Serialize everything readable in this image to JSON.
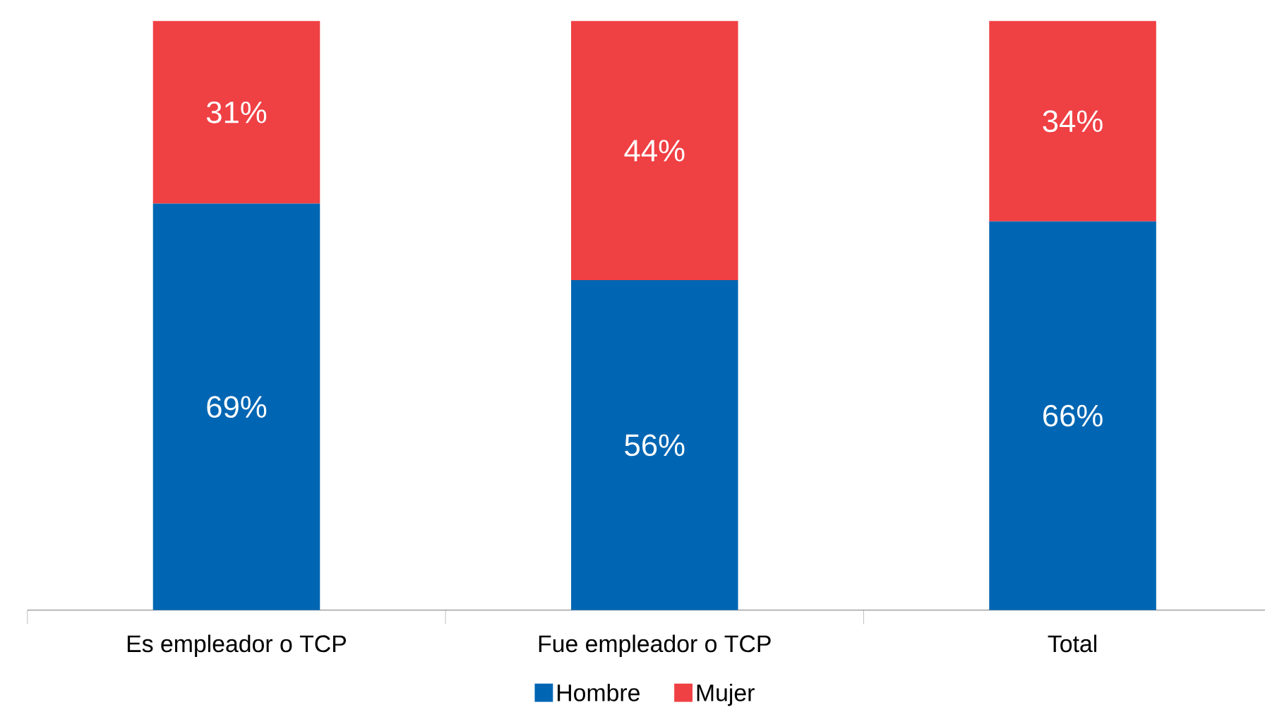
{
  "chart_data": {
    "type": "bar",
    "stacked": true,
    "categories": [
      "Es empleador o TCP",
      "Fue empleador o TCP",
      "Total"
    ],
    "series": [
      {
        "name": "Hombre",
        "color": "#0066b3",
        "values": [
          69,
          56,
          66
        ],
        "value_labels": [
          "69%",
          "56%",
          "66%"
        ]
      },
      {
        "name": "Mujer",
        "color": "#ef4044",
        "values": [
          31,
          44,
          34
        ],
        "value_labels": [
          "31%",
          "44%",
          "34%"
        ]
      }
    ],
    "legend": "bottom"
  }
}
